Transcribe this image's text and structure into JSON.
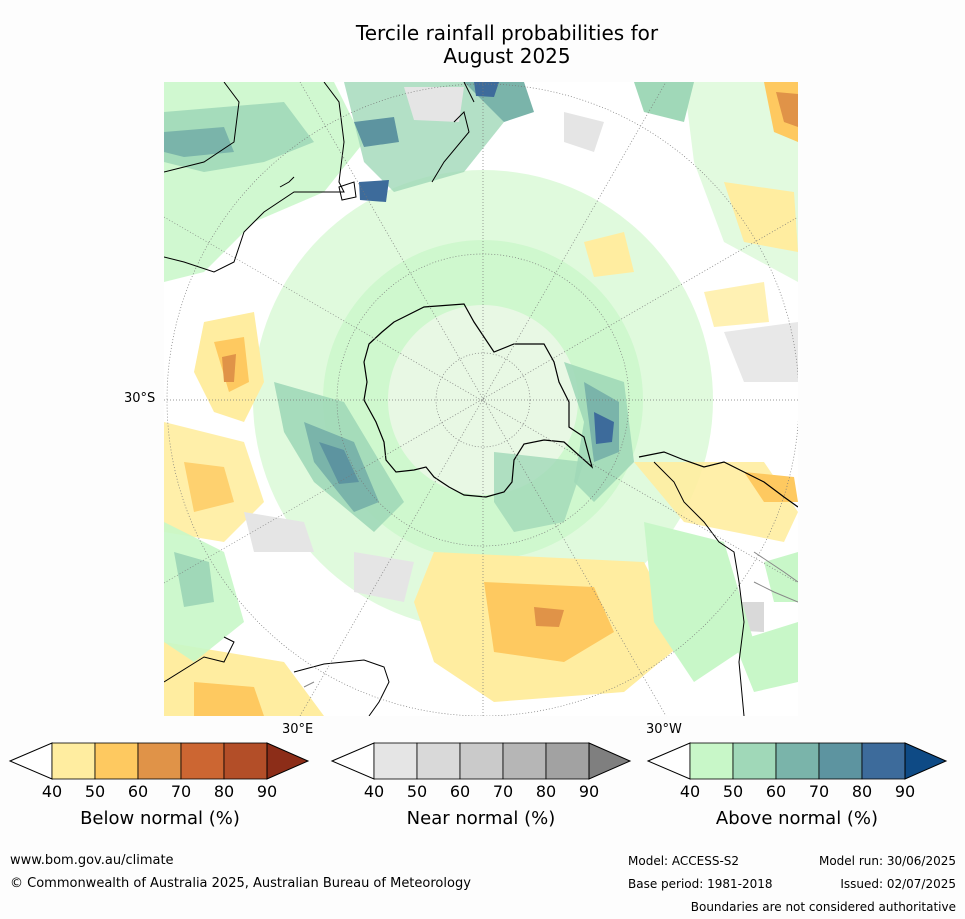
{
  "title": {
    "line1": "Tercile rainfall probabilities for",
    "line2": "August 2025"
  },
  "map": {
    "projection": "south polar stereographic",
    "lat_label": "30°S",
    "lon_labels": {
      "east": "30°E",
      "west": "30°W"
    }
  },
  "colorbars": [
    {
      "title": "Below normal (%)",
      "ticks": [
        "40",
        "50",
        "60",
        "70",
        "80",
        "90"
      ],
      "colors": [
        "#ffffff",
        "#ffeda0",
        "#fec960",
        "#e09348",
        "#cc6632",
        "#b34e28",
        "#8c2d18"
      ]
    },
    {
      "title": "Near normal (%)",
      "ticks": [
        "40",
        "50",
        "60",
        "70",
        "80",
        "90"
      ],
      "colors": [
        "#ffffff",
        "#e5e5e5",
        "#d9d9d9",
        "#cacaca",
        "#b6b6b6",
        "#a2a2a2",
        "#7f7f7f"
      ]
    },
    {
      "title": "Above normal (%)",
      "ticks": [
        "40",
        "50",
        "60",
        "70",
        "80",
        "90"
      ],
      "colors": [
        "#ffffff",
        "#c8f7c8",
        "#a0d8b8",
        "#7ab4aa",
        "#5d94a0",
        "#3d6b9b",
        "#0e4a85"
      ]
    }
  ],
  "footer": {
    "website": "www.bom.gov.au/climate",
    "copyright": "© Commonwealth of Australia 2025, Australian Bureau of Meteorology",
    "model": "Model: ACCESS-S2",
    "base_period": "Base period: 1981-2018",
    "model_run": "Model run: 30/06/2025",
    "issued": "Issued: 02/07/2025",
    "disclaimer": "Boundaries are not considered authoritative"
  }
}
